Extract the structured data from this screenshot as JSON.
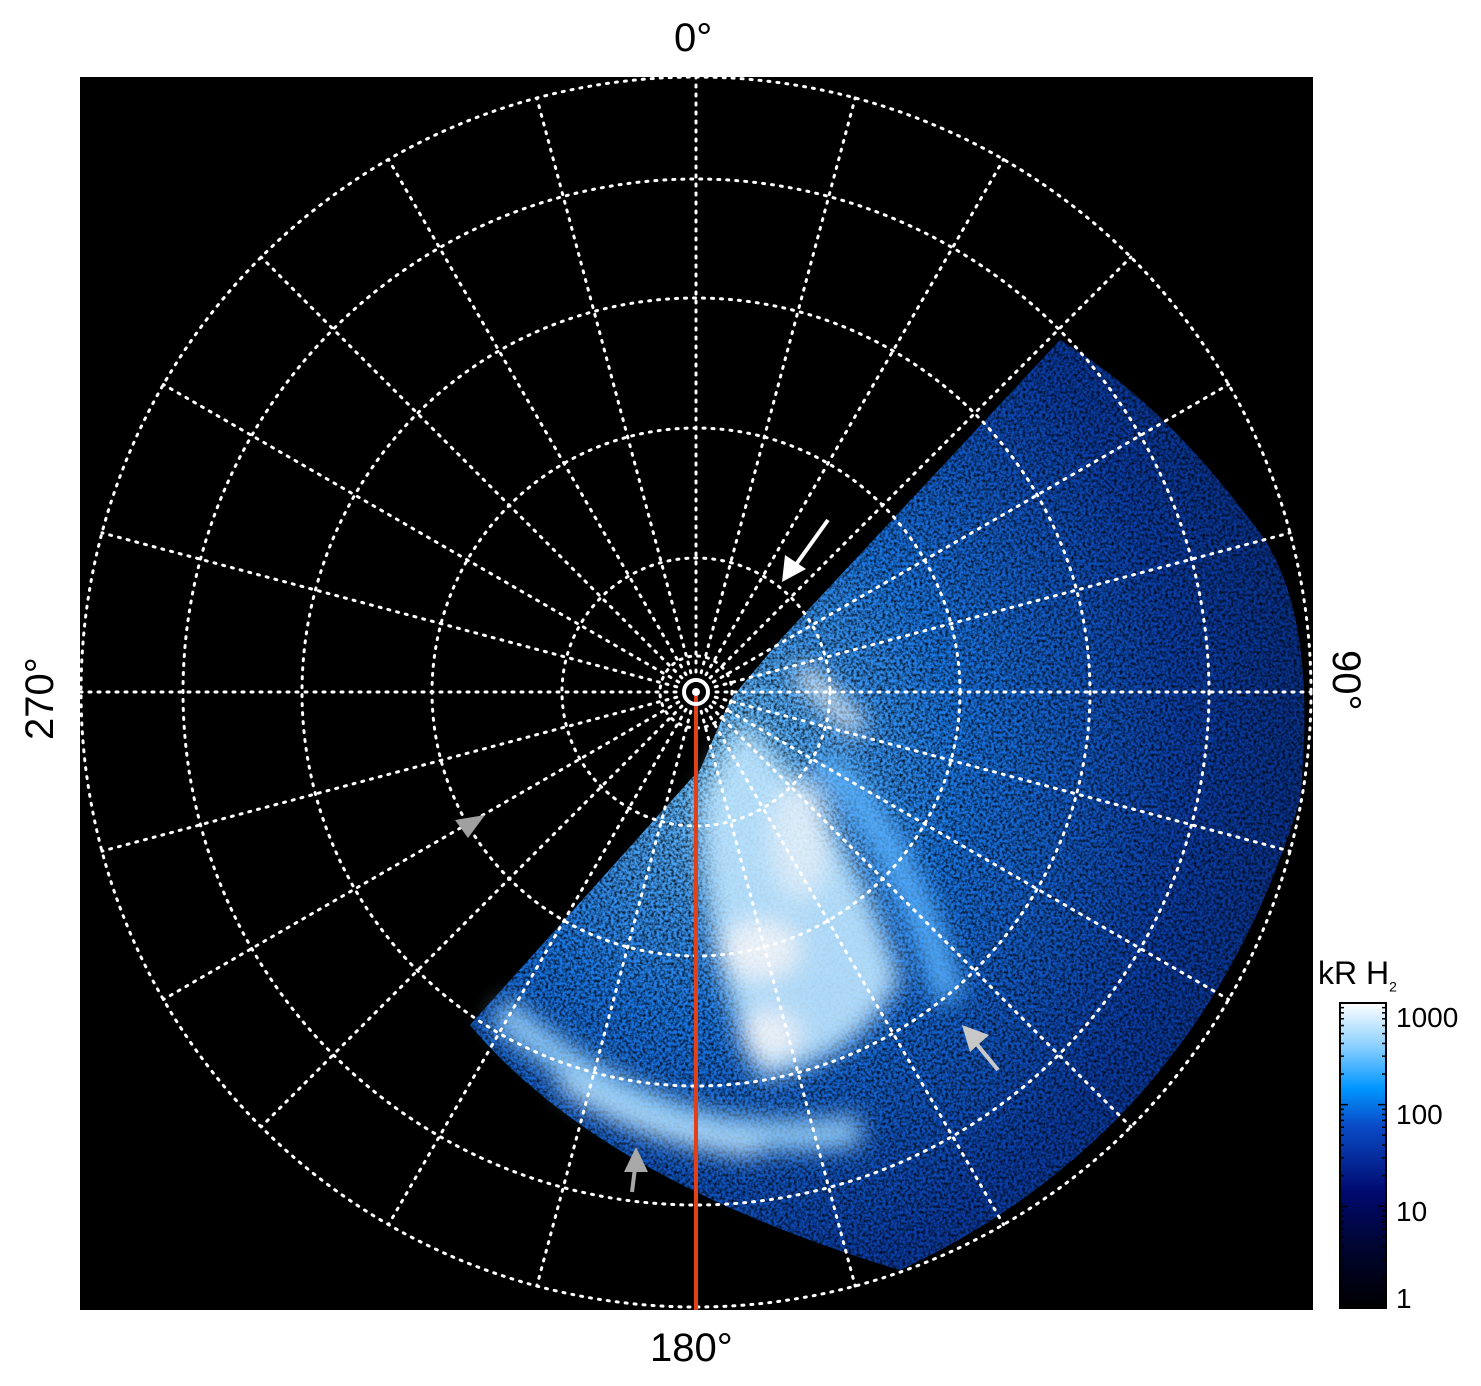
{
  "axes": {
    "top": "0°",
    "right": "90°",
    "bottom": "180°",
    "left": "270°"
  },
  "colorbar": {
    "unit": "kR H",
    "unit_subscript": "2",
    "scale": "log",
    "range": [
      1,
      1000
    ],
    "ticks": [
      "1000",
      "100",
      "10",
      "1"
    ],
    "colors": [
      "#000000",
      "#000a6e",
      "#0a4cc8",
      "#0096ff",
      "#8cd0ff",
      "#ffffff"
    ]
  },
  "grid": {
    "style": "dotted",
    "color": "#ffffff",
    "meridian_spacing_deg": 15
  },
  "reference_line": {
    "color": "#e0401a",
    "longitude": "180°"
  },
  "arrows": [
    {
      "color": "#ffffff"
    },
    {
      "color": "#a0a0a0"
    },
    {
      "color": "#c8c8c8"
    },
    {
      "color": "#a8a8a8"
    }
  ]
}
